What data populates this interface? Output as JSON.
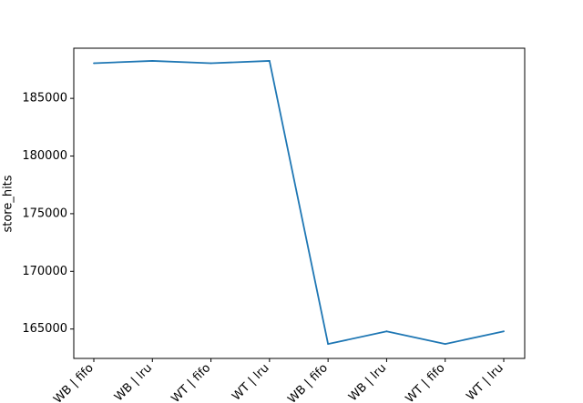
{
  "chart_data": {
    "type": "line",
    "categories": [
      "WB | fifo",
      "WB | lru",
      "WT | fifo",
      "WT | lru",
      "WB | fifo",
      "WB | lru",
      "WT | fifo",
      "WT | lru"
    ],
    "series": [
      {
        "values": [
          188050,
          188250,
          188050,
          188250,
          163700,
          164800,
          163700,
          164800
        ],
        "color": "#1f77b4"
      }
    ],
    "title": "",
    "xlabel": "",
    "ylabel": "store_hits",
    "ylim": [
      162450,
      189350
    ],
    "yticks": [
      165000,
      170000,
      175000,
      180000,
      185000
    ],
    "grid": false,
    "legend": "none"
  }
}
